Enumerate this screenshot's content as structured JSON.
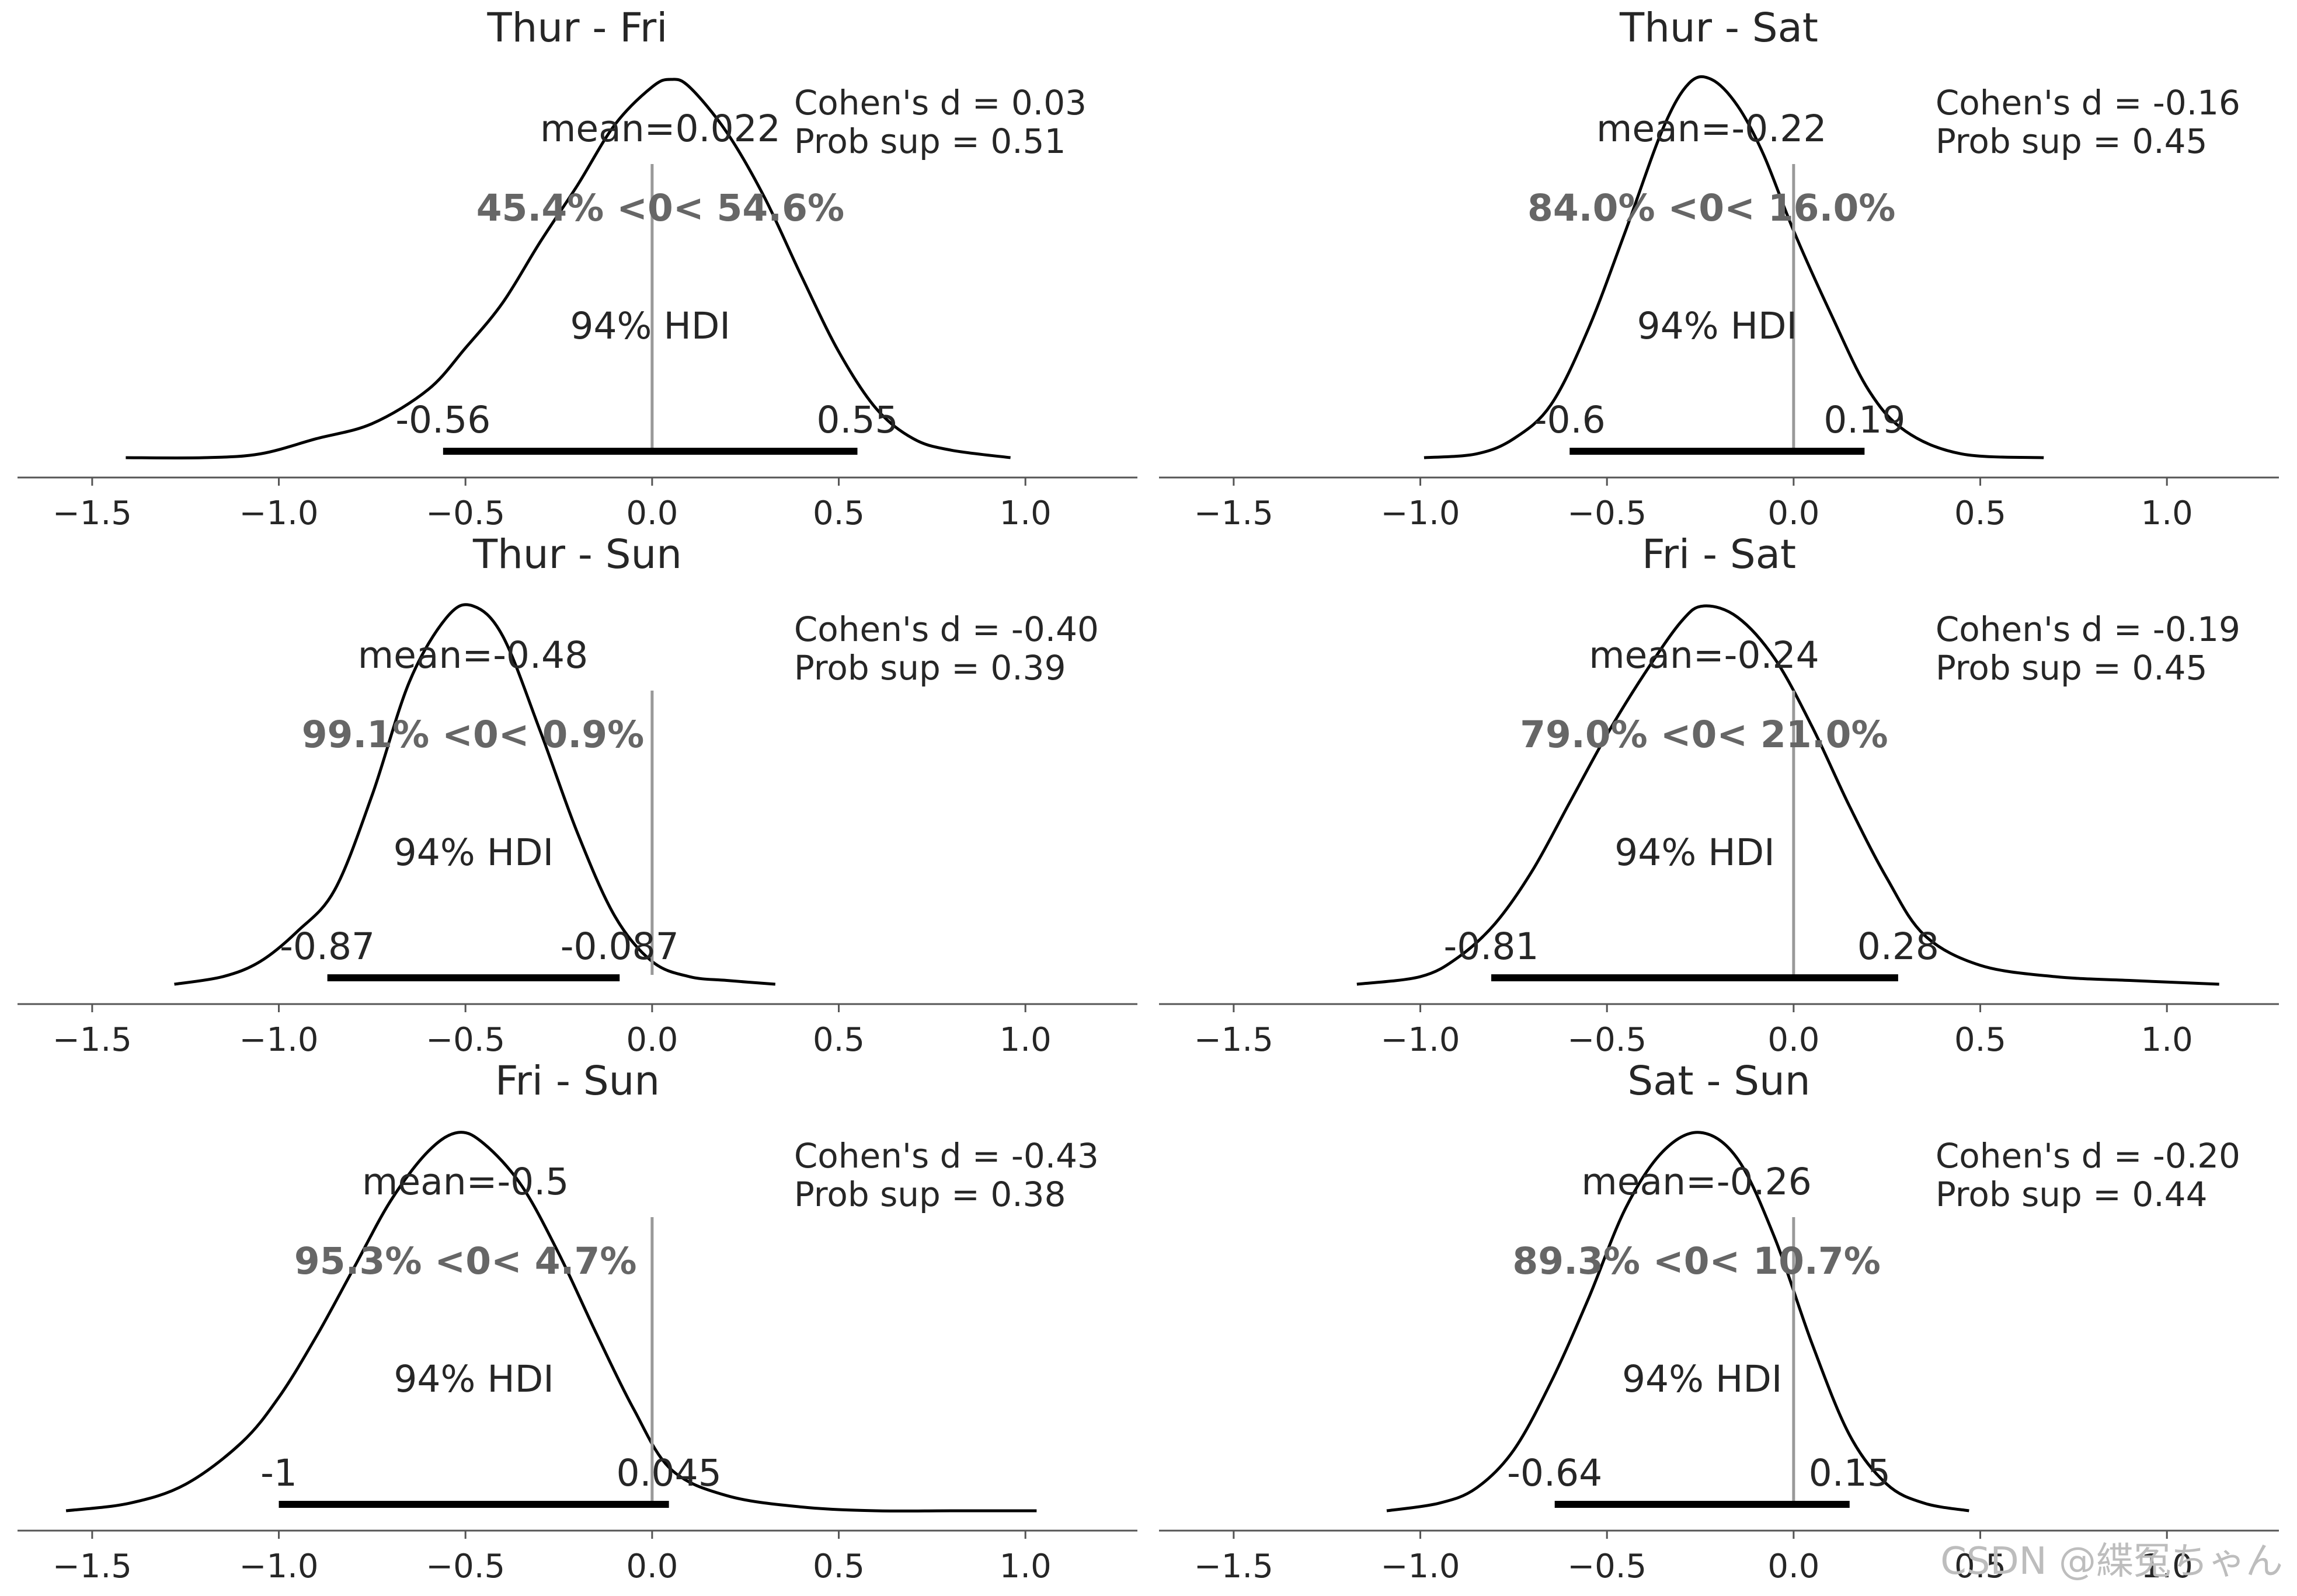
{
  "figure": {
    "watermark": "CSDN @緤冤ちゃん",
    "hdi_label": "94% HDI"
  },
  "chart_data": [
    {
      "type": "area",
      "title": "Thur - Fri",
      "xlim": [
        -1.7,
        1.3
      ],
      "xticks": [
        -1.5,
        -1.0,
        -0.5,
        0.0,
        0.5,
        1.0
      ],
      "xtick_labels": [
        "−1.5",
        "−1.0",
        "−0.5",
        "0.0",
        "0.5",
        "1.0"
      ],
      "mean": 0.022,
      "mean_label": "mean=0.022",
      "hdi": [
        -0.56,
        0.55
      ],
      "hdi_labels": [
        "-0.56",
        "0.55"
      ],
      "ref_val": 0,
      "ref_label": "45.4% <0< 54.6%",
      "cohens_d": "Cohen's d = 0.03",
      "prob_sup": "Prob sup = 0.51",
      "density": {
        "x": [
          -1.41,
          -1.2,
          -1.05,
          -0.9,
          -0.75,
          -0.6,
          -0.5,
          -0.4,
          -0.3,
          -0.2,
          -0.1,
          0.0,
          0.05,
          0.1,
          0.2,
          0.3,
          0.4,
          0.5,
          0.6,
          0.7,
          0.8,
          0.96
        ],
        "y": [
          0.0,
          0.0,
          0.01,
          0.05,
          0.09,
          0.18,
          0.29,
          0.41,
          0.57,
          0.72,
          0.88,
          0.98,
          1.0,
          0.98,
          0.86,
          0.69,
          0.48,
          0.28,
          0.13,
          0.05,
          0.02,
          0.0
        ]
      }
    },
    {
      "type": "area",
      "title": "Thur - Sat",
      "xlim": [
        -1.7,
        1.3
      ],
      "xticks": [
        -1.5,
        -1.0,
        -0.5,
        0.0,
        0.5,
        1.0
      ],
      "xtick_labels": [
        "−1.5",
        "−1.0",
        "−0.5",
        "0.0",
        "0.5",
        "1.0"
      ],
      "mean": -0.22,
      "mean_label": "mean=-0.22",
      "hdi": [
        -0.6,
        0.19
      ],
      "hdi_labels": [
        "-0.6",
        "0.19"
      ],
      "ref_val": 0,
      "ref_label": "84.0% <0< 16.0%",
      "cohens_d": "Cohen's d = -0.16",
      "prob_sup": "Prob sup = 0.45",
      "density": {
        "x": [
          -0.99,
          -0.85,
          -0.75,
          -0.65,
          -0.55,
          -0.45,
          -0.35,
          -0.28,
          -0.22,
          -0.15,
          -0.08,
          0.0,
          0.1,
          0.2,
          0.3,
          0.45,
          0.67
        ],
        "y": [
          0.0,
          0.01,
          0.05,
          0.14,
          0.34,
          0.6,
          0.87,
          0.99,
          1.0,
          0.93,
          0.8,
          0.6,
          0.38,
          0.18,
          0.07,
          0.01,
          0.0
        ]
      }
    },
    {
      "type": "area",
      "title": "Thur - Sun",
      "xlim": [
        -1.7,
        1.3
      ],
      "xticks": [
        -1.5,
        -1.0,
        -0.5,
        0.0,
        0.5,
        1.0
      ],
      "xtick_labels": [
        "−1.5",
        "−1.0",
        "−0.5",
        "0.0",
        "0.5",
        "1.0"
      ],
      "mean": -0.48,
      "mean_label": "mean=-0.48",
      "hdi": [
        -0.87,
        -0.087
      ],
      "hdi_labels": [
        "-0.87",
        "-0.087"
      ],
      "ref_val": 0,
      "ref_label": "99.1% <0< 0.9%",
      "cohens_d": "Cohen's d = -0.40",
      "prob_sup": "Prob sup = 0.39",
      "density": {
        "x": [
          -1.28,
          -1.15,
          -1.05,
          -0.95,
          -0.85,
          -0.75,
          -0.65,
          -0.55,
          -0.48,
          -0.4,
          -0.3,
          -0.2,
          -0.1,
          0.0,
          0.1,
          0.2,
          0.33
        ],
        "y": [
          0.0,
          0.02,
          0.06,
          0.14,
          0.25,
          0.5,
          0.8,
          0.97,
          1.0,
          0.92,
          0.67,
          0.4,
          0.18,
          0.06,
          0.02,
          0.01,
          0.0
        ]
      }
    },
    {
      "type": "area",
      "title": "Fri - Sat",
      "xlim": [
        -1.7,
        1.3
      ],
      "xticks": [
        -1.5,
        -1.0,
        -0.5,
        0.0,
        0.5,
        1.0
      ],
      "xtick_labels": [
        "−1.5",
        "−1.0",
        "−0.5",
        "0.0",
        "0.5",
        "1.0"
      ],
      "mean": -0.24,
      "mean_label": "mean=-0.24",
      "hdi": [
        -0.81,
        0.28
      ],
      "hdi_labels": [
        "-0.81",
        "0.28"
      ],
      "ref_val": 0,
      "ref_label": "79.0% <0< 21.0%",
      "cohens_d": "Cohen's d = -0.19",
      "prob_sup": "Prob sup = 0.45",
      "density": {
        "x": [
          -1.17,
          -1.0,
          -0.9,
          -0.8,
          -0.7,
          -0.6,
          -0.5,
          -0.4,
          -0.3,
          -0.24,
          -0.15,
          -0.05,
          0.05,
          0.15,
          0.25,
          0.35,
          0.5,
          0.7,
          0.9,
          1.14
        ],
        "y": [
          0.0,
          0.02,
          0.07,
          0.16,
          0.3,
          0.48,
          0.66,
          0.82,
          0.96,
          1.0,
          0.97,
          0.86,
          0.68,
          0.47,
          0.28,
          0.13,
          0.05,
          0.02,
          0.01,
          0.0
        ]
      }
    },
    {
      "type": "area",
      "title": "Fri - Sun",
      "xlim": [
        -1.7,
        1.3
      ],
      "xticks": [
        -1.5,
        -1.0,
        -0.5,
        0.0,
        0.5,
        1.0
      ],
      "xtick_labels": [
        "−1.5",
        "−1.0",
        "−0.5",
        "0.0",
        "0.5",
        "1.0"
      ],
      "mean": -0.5,
      "mean_label": "mean=-0.5",
      "hdi": [
        -1.0,
        0.045
      ],
      "hdi_labels": [
        "-1",
        "0.045"
      ],
      "ref_val": 0,
      "ref_label": "95.3% <0< 4.7%",
      "cohens_d": "Cohen's d = -0.43",
      "prob_sup": "Prob sup = 0.38",
      "density": {
        "x": [
          -1.57,
          -1.4,
          -1.25,
          -1.1,
          -1.0,
          -0.9,
          -0.8,
          -0.7,
          -0.6,
          -0.52,
          -0.45,
          -0.35,
          -0.25,
          -0.15,
          -0.05,
          0.05,
          0.2,
          0.4,
          0.6,
          0.8,
          1.03
        ],
        "y": [
          0.0,
          0.02,
          0.07,
          0.18,
          0.3,
          0.46,
          0.64,
          0.82,
          0.95,
          1.0,
          0.97,
          0.86,
          0.68,
          0.47,
          0.27,
          0.11,
          0.04,
          0.01,
          0.0,
          0.0,
          0.0
        ]
      }
    },
    {
      "type": "area",
      "title": "Sat - Sun",
      "xlim": [
        -1.7,
        1.3
      ],
      "xticks": [
        -1.5,
        -1.0,
        -0.5,
        0.0,
        0.5,
        1.0
      ],
      "xtick_labels": [
        "−1.5",
        "−1.0",
        "−0.5",
        "0.0",
        "0.5",
        "1.0"
      ],
      "mean": -0.26,
      "mean_label": "mean=-0.26",
      "hdi": [
        -0.64,
        0.15
      ],
      "hdi_labels": [
        "-0.64",
        "0.15"
      ],
      "ref_val": 0,
      "ref_label": "89.3% <0< 10.7%",
      "cohens_d": "Cohen's d = -0.20",
      "prob_sup": "Prob sup = 0.44",
      "density": {
        "x": [
          -1.09,
          -0.95,
          -0.85,
          -0.75,
          -0.65,
          -0.55,
          -0.45,
          -0.35,
          -0.25,
          -0.15,
          -0.05,
          0.05,
          0.15,
          0.25,
          0.35,
          0.47
        ],
        "y": [
          0.0,
          0.02,
          0.06,
          0.16,
          0.34,
          0.56,
          0.8,
          0.95,
          1.0,
          0.93,
          0.72,
          0.44,
          0.2,
          0.07,
          0.02,
          0.0
        ]
      }
    }
  ]
}
